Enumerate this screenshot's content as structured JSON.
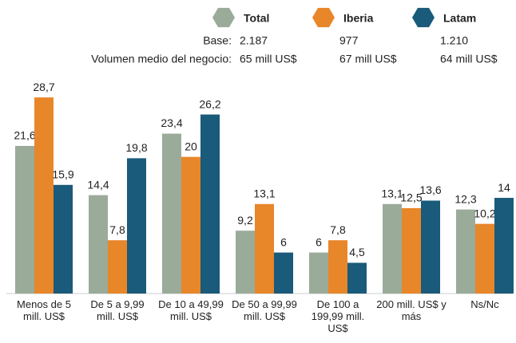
{
  "chart_data": {
    "type": "bar",
    "categories": [
      "Menos de 5 mill. US$",
      "De 5 a 9,99 mill. US$",
      "De 10 a 49,99 mill. US$",
      "De 50 a 99,99 mill. US$",
      "De 100 a 199,99 mill. US$",
      "200 mill. US$ y más",
      "Ns/Nc"
    ],
    "series": [
      {
        "name": "Total",
        "color": "#9aab9a",
        "values": [
          21.6,
          14.4,
          23.4,
          9.2,
          6,
          13.1,
          12.3
        ],
        "value_labels": [
          "21,6",
          "14,4",
          "23,4",
          "9,2",
          "6",
          "13,1",
          "12,3"
        ],
        "base": "2.187",
        "volume": "65 mill US$"
      },
      {
        "name": "Iberia",
        "color": "#e8862a",
        "values": [
          28.7,
          7.8,
          20,
          13.1,
          7.8,
          12.5,
          10.2
        ],
        "value_labels": [
          "28,7",
          "7,8",
          "20",
          "13,1",
          "7,8",
          "12,5",
          "10,2"
        ],
        "base": "977",
        "volume": "67 mill US$"
      },
      {
        "name": "Latam",
        "color": "#1a5a7a",
        "values": [
          15.9,
          19.8,
          26.2,
          6,
          4.5,
          13.6,
          14
        ],
        "value_labels": [
          "15,9",
          "19,8",
          "26,2",
          "6",
          "4,5",
          "13,6",
          "14"
        ],
        "base": "1.210",
        "volume": "64 mill US$"
      }
    ],
    "base_label": "Base:",
    "volume_label": "Volumen medio del negocio:",
    "ylim": [
      0,
      30
    ]
  }
}
